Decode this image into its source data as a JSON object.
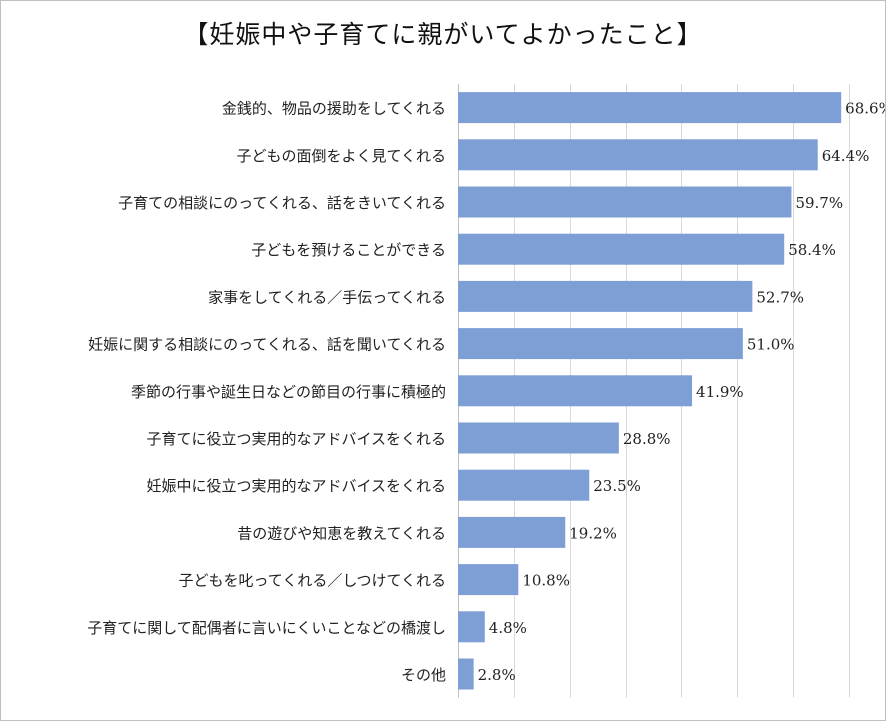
{
  "chart_data": {
    "type": "bar",
    "orientation": "horizontal",
    "title": "【妊娠中や子育てに親がいてよかったこと】",
    "categories": [
      "金銭的、物品の援助をしてくれる",
      "子どもの面倒をよく見てくれる",
      "子育ての相談にのってくれる、話をきいてくれる",
      "子どもを預けることができる",
      "家事をしてくれる／手伝ってくれる",
      "妊娠に関する相談にのってくれる、話を聞いてくれる",
      "季節の行事や誕生日などの節目の行事に積極的",
      "子育てに役立つ実用的なアドバイスをくれる",
      "妊娠中に役立つ実用的なアドバイスをくれる",
      "昔の遊びや知恵を教えてくれる",
      "子どもを叱ってくれる／しつけてくれる",
      "子育てに関して配偶者に言いにくいことなどの橋渡し",
      "その他"
    ],
    "values": [
      68.6,
      64.4,
      59.7,
      58.4,
      52.7,
      51.0,
      41.9,
      28.8,
      23.5,
      19.2,
      10.8,
      4.8,
      2.8
    ],
    "value_labels": [
      "68.6%",
      "64.4%",
      "59.7%",
      "58.4%",
      "52.7%",
      "51.0%",
      "41.9%",
      "28.8%",
      "23.5%",
      "19.2%",
      "10.8%",
      "4.8%",
      "2.8%"
    ],
    "xlim": [
      0,
      70
    ],
    "grid": true,
    "bar_color": "#7d9fd6",
    "grid_color": "#d9d9d9"
  }
}
